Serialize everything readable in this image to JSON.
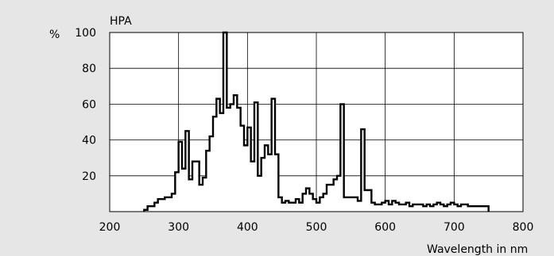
{
  "chart_data": {
    "type": "area",
    "title": "HPA",
    "ylabel": "%",
    "xlabel": "Wavelength in nm",
    "xlim": [
      200,
      800
    ],
    "ylim": [
      0,
      100
    ],
    "x_ticks": [
      200,
      300,
      400,
      500,
      600,
      700,
      800
    ],
    "y_ticks": [
      20,
      40,
      60,
      80,
      100
    ],
    "y_top_label": "100",
    "grid": true,
    "line_color": "#000000",
    "fill_color": "#ffffff",
    "background_color": "#e6e6e6",
    "series": [
      {
        "x": [
          250,
          255,
          260,
          265,
          270,
          275,
          280,
          285,
          290,
          295,
          300,
          305,
          310,
          315,
          320,
          325,
          330,
          335,
          340,
          345,
          350,
          355,
          360,
          365,
          370,
          375,
          380,
          385,
          390,
          395,
          400,
          405,
          410,
          415,
          420,
          425,
          430,
          435,
          440,
          445,
          450,
          455,
          460,
          465,
          470,
          475,
          480,
          485,
          490,
          495,
          500,
          505,
          510,
          515,
          520,
          525,
          530,
          535,
          540,
          545,
          550,
          555,
          560,
          565,
          570,
          575,
          580,
          585,
          590,
          595,
          600,
          605,
          610,
          615,
          620,
          625,
          630,
          635,
          640,
          645,
          650,
          655,
          660,
          665,
          670,
          675,
          680,
          685,
          690,
          695,
          700,
          705,
          710,
          715,
          720,
          725,
          730,
          735,
          740,
          745,
          750
        ],
        "values": [
          1,
          3,
          3,
          5,
          7,
          7,
          8,
          8,
          10,
          22,
          39,
          24,
          45,
          18,
          28,
          28,
          15,
          19,
          34,
          42,
          53,
          63,
          55,
          100,
          58,
          60,
          65,
          58,
          48,
          37,
          47,
          28,
          61,
          20,
          30,
          37,
          32,
          63,
          32,
          8,
          5,
          6,
          5,
          5,
          7,
          5,
          10,
          13,
          10,
          7,
          5,
          8,
          10,
          15,
          15,
          18,
          20,
          60,
          8,
          8,
          8,
          8,
          6,
          46,
          12,
          12,
          5,
          4,
          4,
          5,
          6,
          4,
          6,
          5,
          4,
          4,
          5,
          3,
          4,
          4,
          4,
          3,
          4,
          3,
          4,
          5,
          4,
          3,
          4,
          5,
          4,
          3,
          4,
          4,
          3,
          3,
          3,
          3,
          3,
          3,
          0
        ]
      }
    ]
  }
}
